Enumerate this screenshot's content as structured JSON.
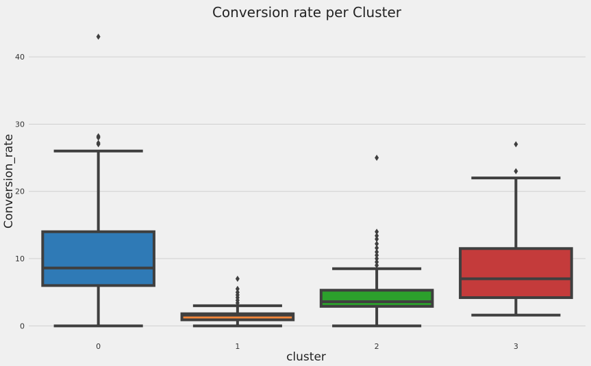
{
  "chart_data": {
    "type": "box",
    "title": "Conversion rate per Cluster",
    "xlabel": "cluster",
    "ylabel": "Conversion_rate",
    "categories": [
      "0",
      "1",
      "2",
      "3"
    ],
    "ylim": [
      -2,
      45
    ],
    "yticks": [
      "0",
      "10",
      "20",
      "30",
      "40"
    ],
    "grid": true,
    "boxes": [
      {
        "category": "0",
        "min": 0,
        "q1": 6,
        "median": 8.6,
        "q3": 14,
        "max": 26,
        "outliers": [
          27,
          27.2,
          28,
          28.2,
          43
        ],
        "color": "#2f7ab6"
      },
      {
        "category": "1",
        "min": 0,
        "q1": 0.9,
        "median": 1.6,
        "q3": 1.8,
        "max": 3,
        "outliers": [
          3.4,
          3.8,
          4.2,
          4.6,
          5,
          5.5,
          7
        ],
        "color": "#f2863b"
      },
      {
        "category": "2",
        "min": 0,
        "q1": 2.9,
        "median": 3.6,
        "q3": 5.3,
        "max": 8.5,
        "outliers": [
          9,
          9.5,
          10,
          10.5,
          11,
          11.6,
          12.2,
          12.9,
          13.4,
          14,
          25
        ],
        "color": "#2ca02c"
      },
      {
        "category": "3",
        "min": 1.6,
        "q1": 4.2,
        "median": 7,
        "q3": 11.5,
        "max": 22,
        "outliers": [
          23,
          27
        ],
        "color": "#c43b3b"
      }
    ],
    "colors": {
      "background": "#f0f0f0",
      "grid": "#cfcfcf",
      "line": "#3f3f3f"
    }
  }
}
